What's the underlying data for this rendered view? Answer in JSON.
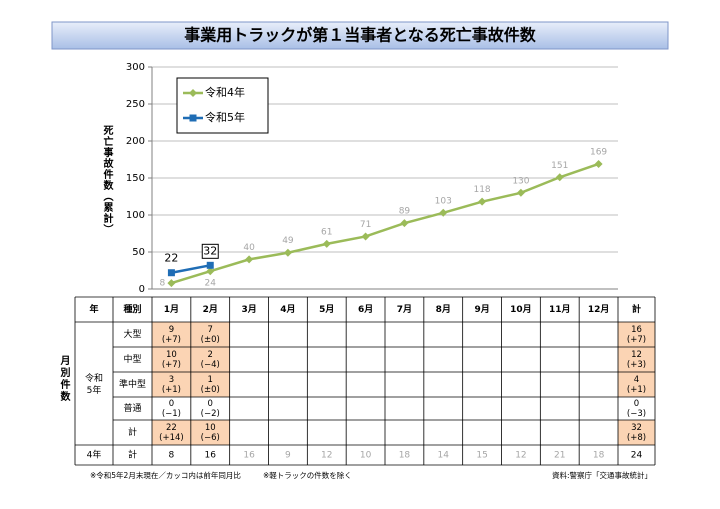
{
  "chart_data": {
    "type": "line",
    "title": "事業用トラックが第１当事者となる死亡事故件数",
    "y_label": "死亡事故件数（累計）",
    "ylim": [
      0,
      300
    ],
    "yticks": [
      0,
      50,
      100,
      150,
      200,
      250,
      300
    ],
    "grid": true,
    "legend": "upper left",
    "series": [
      {
        "name": "令和4年",
        "color": "#9bbb59",
        "marker": "diamond",
        "values": [
          8,
          24,
          40,
          49,
          61,
          71,
          89,
          103,
          118,
          130,
          151,
          169
        ]
      },
      {
        "name": "令和5年",
        "color": "#1f6db5",
        "marker": "square",
        "values": [
          22,
          32,
          null,
          null,
          null,
          null,
          null,
          null,
          null,
          null,
          null,
          null
        ]
      }
    ]
  },
  "table": {
    "header": [
      "年",
      "種別",
      "1月",
      "2月",
      "3月",
      "4月",
      "5月",
      "6月",
      "7月",
      "8月",
      "9月",
      "10月",
      "11月",
      "12月",
      "計"
    ],
    "side_label": "月別件数",
    "group": [
      "令和",
      "5年"
    ],
    "rows": [
      {
        "label": "大型",
        "cells": [
          [
            9,
            "(+7)"
          ],
          [
            7,
            "(±0)"
          ],
          null,
          null,
          null,
          null,
          null,
          null,
          null,
          null,
          null,
          null,
          [
            16,
            "(+7)"
          ]
        ]
      },
      {
        "label": "中型",
        "cells": [
          [
            10,
            "(+7)"
          ],
          [
            2,
            "(−4)"
          ],
          null,
          null,
          null,
          null,
          null,
          null,
          null,
          null,
          null,
          null,
          [
            12,
            "(+3)"
          ]
        ]
      },
      {
        "label": "準中型",
        "cells": [
          [
            3,
            "(+1)"
          ],
          [
            1,
            "(±0)"
          ],
          null,
          null,
          null,
          null,
          null,
          null,
          null,
          null,
          null,
          null,
          [
            4,
            "(+1)"
          ]
        ]
      },
      {
        "label": "普通",
        "cells": [
          [
            0,
            "(−1)"
          ],
          [
            0,
            "(−2)"
          ],
          null,
          null,
          null,
          null,
          null,
          null,
          null,
          null,
          null,
          null,
          [
            0,
            "(−3)"
          ]
        ]
      },
      {
        "label": "計",
        "cells": [
          [
            22,
            "(+14)"
          ],
          [
            10,
            "(−6)"
          ],
          null,
          null,
          null,
          null,
          null,
          null,
          null,
          null,
          null,
          null,
          [
            32,
            "(+8)"
          ]
        ]
      }
    ],
    "prev": {
      "year": "4年",
      "label": "計",
      "cells": [
        8,
        16,
        16,
        9,
        12,
        10,
        18,
        14,
        15,
        12,
        21,
        18,
        24
      ]
    }
  },
  "notes": [
    "※令和5年2月末現在／カッコ内は前年同月比",
    "※軽トラックの件数を除く"
  ],
  "source": "資料:警察庁「交通事故統計」"
}
